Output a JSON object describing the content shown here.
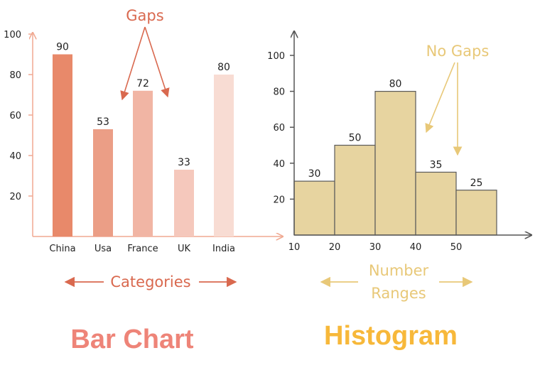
{
  "colors": {
    "bar_axis": "#f0a992",
    "bar_note": "#d9694f",
    "bar_title": "#ee8478",
    "bars": [
      "#e8896a",
      "#eb9e86",
      "#f1b5a4",
      "#f5c8bc",
      "#f8dcd3"
    ],
    "hist_fill": "#e7d4a0",
    "hist_stroke": "#5a5a5a",
    "hist_axis": "#555555",
    "hist_note": "#e8c878",
    "hist_title": "#f7b83a"
  },
  "chart_data": [
    {
      "type": "bar",
      "categories": [
        "China",
        "Usa",
        "France",
        "UK",
        "India"
      ],
      "values": [
        90,
        53,
        72,
        33,
        80
      ],
      "data_labels": [
        "90",
        "53",
        "72",
        "33",
        "80"
      ],
      "yticks": [
        "20",
        "40",
        "60",
        "80",
        "100"
      ],
      "ylim": [
        0,
        100
      ],
      "grid": false,
      "annotations": {
        "gaps": "Gaps",
        "axis_note": "Categories"
      },
      "caption": "Bar Chart"
    },
    {
      "type": "bar",
      "histogram": true,
      "bin_edges": [
        10,
        20,
        30,
        40,
        50,
        60
      ],
      "xtick_labels": [
        "10",
        "20",
        "30",
        "40",
        "50"
      ],
      "values": [
        30,
        50,
        80,
        35,
        25
      ],
      "data_labels": [
        "30",
        "50",
        "80",
        "35",
        "25"
      ],
      "yticks": [
        "20",
        "40",
        "60",
        "80",
        "100"
      ],
      "ylim": [
        0,
        100
      ],
      "grid": false,
      "annotations": {
        "no_gaps": "No Gaps",
        "axis_note_line1": "Number",
        "axis_note_line2": "Ranges"
      },
      "caption": "Histogram"
    }
  ]
}
